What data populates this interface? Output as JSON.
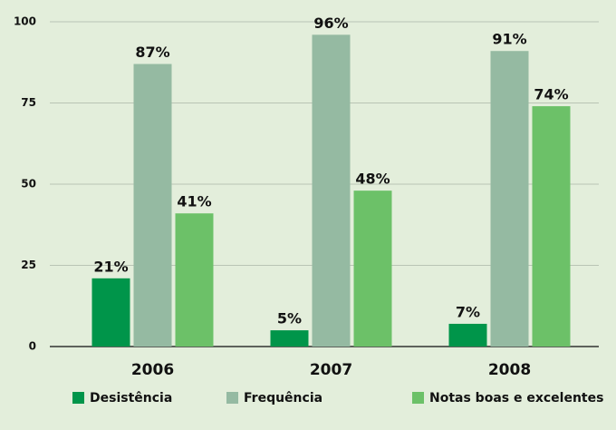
{
  "chart_data": {
    "type": "bar",
    "categories": [
      "2006",
      "2007",
      "2008"
    ],
    "series": [
      {
        "name": "Desistência",
        "color": "#00954a",
        "values": [
          21,
          5,
          7
        ],
        "value_labels": [
          "21%",
          "5%",
          "7%"
        ]
      },
      {
        "name": "Frequência",
        "color": "#95baa2",
        "values": [
          87,
          96,
          91
        ],
        "value_labels": [
          "87%",
          "96%",
          "91%"
        ]
      },
      {
        "name": "Notas boas e excelentes",
        "color": "#6cc168",
        "values": [
          41,
          48,
          74
        ],
        "value_labels": [
          "41%",
          "48%",
          "74%"
        ]
      }
    ],
    "ylim": [
      0,
      100
    ],
    "yticks": [
      0,
      25,
      50,
      75,
      100
    ],
    "grid": true,
    "legend": "bottom"
  }
}
